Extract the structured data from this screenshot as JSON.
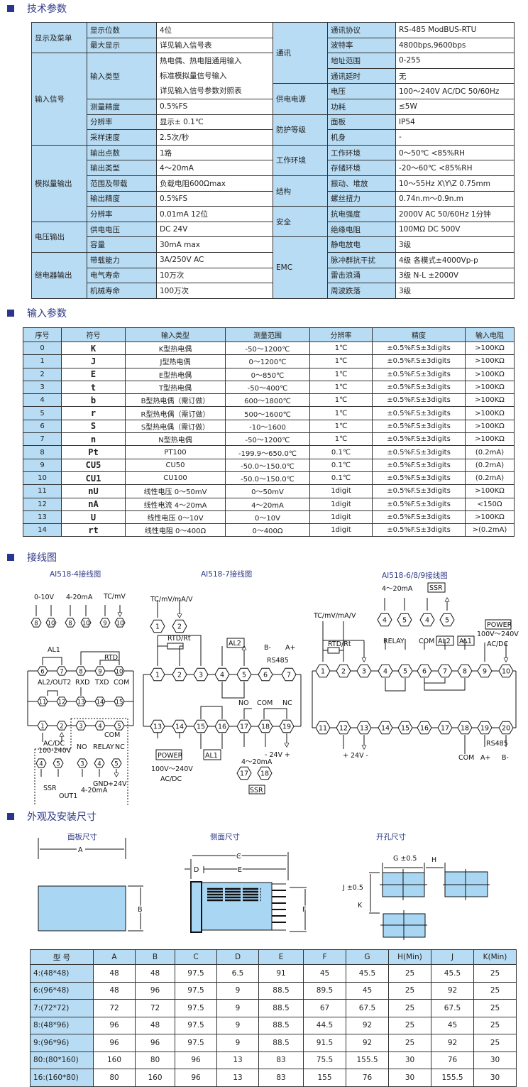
{
  "sections": {
    "tech": "技术参数",
    "input": "输入参数",
    "wiring": "接线图",
    "dims": "外观及安装尺寸"
  },
  "spec": {
    "left": [
      {
        "category": "显示及菜单",
        "items": [
          {
            "name": "显示位数",
            "value": "4位"
          },
          {
            "name": "最大显示",
            "value": "详见输入信号表"
          }
        ]
      },
      {
        "category": "输入信号",
        "items": [
          {
            "name": "输入类型",
            "value": [
              "热电偶、热电阻通用输入",
              "标准模拟量信号输入",
              "详见输入信号参数对照表"
            ]
          },
          {
            "name": "测量精度",
            "value": "0.5%FS"
          },
          {
            "name": "分辨率",
            "value": "显示± 0.1℃"
          },
          {
            "name": "采样速度",
            "value": "2.5次/秒"
          }
        ]
      },
      {
        "category": "模拟量输出",
        "items": [
          {
            "name": "输出点数",
            "value": "1路"
          },
          {
            "name": "输出类型",
            "value": "4～20mA"
          },
          {
            "name": "范围及带载",
            "value": "负载电阻600Ωmax"
          },
          {
            "name": "输出精度",
            "value": "0.5%FS"
          },
          {
            "name": "分辨率",
            "value": "0.01mA  12位"
          }
        ]
      },
      {
        "category": "电压输出",
        "items": [
          {
            "name": "供电电压",
            "value": "DC 24V"
          },
          {
            "name": "容量",
            "value": "30mA max"
          }
        ]
      },
      {
        "category": "继电器输出",
        "items": [
          {
            "name": "带载能力",
            "value": "3A/250V AC"
          },
          {
            "name": "电气寿命",
            "value": "10万次"
          },
          {
            "name": "机械寿命",
            "value": "100万次"
          }
        ]
      }
    ],
    "right": [
      {
        "category": "通讯",
        "items": [
          {
            "name": "通讯协议",
            "value": "RS-485 ModBUS-RTU"
          },
          {
            "name": "波特率",
            "value": "4800bps,9600bps"
          },
          {
            "name": "地址范围",
            "value": "0-255"
          },
          {
            "name": "通讯延时",
            "value": "无"
          }
        ]
      },
      {
        "category": "供电电源",
        "items": [
          {
            "name": "电压",
            "value": "100～240V AC/DC  50/60Hz"
          },
          {
            "name": "功耗",
            "value": "≤5W"
          }
        ]
      },
      {
        "category": "防护等级",
        "items": [
          {
            "name": "面板",
            "value": "IP54"
          },
          {
            "name": "机身",
            "value": "-"
          }
        ]
      },
      {
        "category": "工作环境",
        "items": [
          {
            "name": "工作环境",
            "value": "0～50℃  <85%RH"
          },
          {
            "name": "存储环境",
            "value": "-20～60℃  <85%RH"
          }
        ]
      },
      {
        "category": "结构",
        "items": [
          {
            "name": "振动、堆放",
            "value": "10～55Hz  X\\Y\\Z  0.75mm"
          },
          {
            "name": "螺丝扭力",
            "value": "0.74n.m～0.9n.m"
          }
        ]
      },
      {
        "category": "安全",
        "items": [
          {
            "name": "抗电强度",
            "value": "2000V AC  50/60Hz  1分钟"
          },
          {
            "name": "绝缘电阻",
            "value": "100MΩ  DC 500V"
          }
        ]
      },
      {
        "category": "EMC",
        "items": [
          {
            "name": "静电放电",
            "value": "3级"
          },
          {
            "name": "脉冲群抗干扰",
            "value": "4级 各模式±4000Vp-p"
          },
          {
            "name": "雷击浪涌",
            "value": "3级 N-L ±2000V"
          },
          {
            "name": "周波跌落",
            "value": "3级"
          }
        ]
      }
    ]
  },
  "input_table": {
    "headers": [
      "序号",
      "符号",
      "输入类型",
      "测量范围",
      "分辨率",
      "精度",
      "输入电阻"
    ],
    "rows": [
      [
        "0",
        "K",
        "K型热电偶",
        "-50～1200℃",
        "1℃",
        "±0.5%F.S±3digits",
        ">100KΩ"
      ],
      [
        "1",
        "J",
        "J型热电偶",
        "0～1200℃",
        "1℃",
        "±0.5%F.S±3digits",
        ">100KΩ"
      ],
      [
        "2",
        "E",
        "E型热电偶",
        "0～850℃",
        "1℃",
        "±0.5%F.S±3digits",
        ">100KΩ"
      ],
      [
        "3",
        "t",
        "T型热电偶",
        "-50～400℃",
        "1℃",
        "±0.5%F.S±3digits",
        ">100KΩ"
      ],
      [
        "4",
        "b",
        "B型热电偶（需订做）",
        "600～1800℃",
        "1℃",
        "±0.5%F.S±3digits",
        ">100KΩ"
      ],
      [
        "5",
        "r",
        "R型热电偶（需订做）",
        "500～1600℃",
        "1℃",
        "±0.5%F.S±3digits",
        ">100KΩ"
      ],
      [
        "6",
        "S",
        "S型热电偶（需订做）",
        "-10～1600",
        "1℃",
        "±0.5%F.S±3digits",
        ">100KΩ"
      ],
      [
        "7",
        "n",
        "N型热电偶",
        "-50～1200℃",
        "1℃",
        "±0.5%F.S±3digits",
        ">100KΩ"
      ],
      [
        "8",
        "Pt",
        "PT100",
        "-199.9～650.0℃",
        "0.1℃",
        "±0.5%F.S±3digits",
        "(0.2mA)"
      ],
      [
        "9",
        "CU5",
        "CU50",
        "-50.0～150.0℃",
        "0.1℃",
        "±0.5%F.S±3digits",
        "(0.2mA)"
      ],
      [
        "10",
        "CU1",
        "CU100",
        "-50.0～150.0℃",
        "0.1℃",
        "±0.5%F.S±3digits",
        "(0.2mA)"
      ],
      [
        "11",
        "nU",
        "线性电压 0～50mV",
        "0～50mV",
        "1digit",
        "±0.5%F.S±3digits",
        ">100KΩ"
      ],
      [
        "12",
        "nA",
        "线性电流 4～20mA",
        "4～20mA",
        "1digit",
        "±0.5%F.S±3digits",
        "<150Ω"
      ],
      [
        "13",
        "U",
        "线性电压 0～10V",
        "0～10V",
        "1digit",
        "±0.5%F.S±3digits",
        ">100KΩ"
      ],
      [
        "14",
        "rt",
        "线性电阻 0～400Ω",
        "0～400Ω",
        "1digit",
        "±0.5%F.S±3digits",
        ">(0.2mA)"
      ]
    ]
  },
  "wiring": {
    "d1": {
      "title": "AI518-4接线图",
      "labels": [
        "0-10V",
        "4-20mA",
        "TC/mV",
        "AL1",
        "RTD",
        "AL2/OUT2",
        "RXD",
        "TXD",
        "COM",
        "AC/DC",
        "100-240V",
        "NO",
        "RELAY",
        "NC",
        "COM",
        "SSR",
        "OUT1",
        "GND",
        "+24V",
        "4-20mA"
      ],
      "terminals": [
        "8",
        "10",
        "8",
        "10",
        "9",
        "10",
        "6",
        "7",
        "8",
        "9",
        "10",
        "11",
        "12",
        "13",
        "14",
        "15",
        "1",
        "2",
        "3",
        "4",
        "5",
        "4",
        "5",
        "3",
        "4",
        "5"
      ]
    },
    "d2": {
      "title": "AI518-7接线图",
      "labels": [
        "TC/mV/mA/V",
        "RTD/Rt",
        "AL2",
        "B-",
        "A+",
        "RS485",
        "NO",
        "COM",
        "NC",
        "POWER",
        "100V～240V",
        "AC/DC",
        "AL1",
        "- 24V +",
        "4～20mA",
        "SSR"
      ],
      "terminals": [
        "1",
        "2",
        "1",
        "2",
        "3",
        "4",
        "5",
        "6",
        "7",
        "13",
        "14",
        "15",
        "16",
        "17",
        "18",
        "19",
        "17",
        "18"
      ]
    },
    "d3": {
      "title": "AI518-6/8/9接线图",
      "labels": [
        "4～20mA",
        "SSR",
        "TC/mV/mA/V",
        "RTD/Rt",
        "RELAY",
        "COM",
        "AL2",
        "AL1",
        "POWER",
        "100V～240V",
        "AC/DC",
        "+ 24V -",
        "COM",
        "A+",
        "B-",
        "RS485"
      ],
      "terminals": [
        "4",
        "5",
        "4",
        "5",
        "1",
        "2",
        "3",
        "4",
        "5",
        "6",
        "7",
        "8",
        "9",
        "10",
        "11",
        "12",
        "13",
        "14",
        "15",
        "16",
        "17",
        "18",
        "19",
        "20"
      ]
    }
  },
  "dims": {
    "panel_title": "面板尺寸",
    "side_title": "侧面尺寸",
    "cutout_title": "开孔尺寸",
    "labels": {
      "A": "A",
      "B": "B",
      "C": "C",
      "D": "D",
      "E": "E",
      "F": "F",
      "G": "G ±0.5",
      "H": "H",
      "J": "J ±0.5",
      "K": "K"
    },
    "headers": [
      "型  号",
      "A",
      "B",
      "C",
      "D",
      "E",
      "F",
      "G",
      "H(Min)",
      "J",
      "K(Min)"
    ],
    "rows": [
      [
        "4:(48*48)",
        "48",
        "48",
        "97.5",
        "6.5",
        "91",
        "45",
        "45.5",
        "25",
        "45.5",
        "25"
      ],
      [
        "6:(96*48)",
        "48",
        "96",
        "97.5",
        "9",
        "88.5",
        "89.5",
        "45",
        "25",
        "92",
        "25"
      ],
      [
        "7:(72*72)",
        "72",
        "72",
        "97.5",
        "9",
        "88.5",
        "67",
        "67.5",
        "25",
        "67.5",
        "25"
      ],
      [
        "8:(48*96)",
        "96",
        "48",
        "97.5",
        "9",
        "88.5",
        "44.5",
        "92",
        "25",
        "45",
        "25"
      ],
      [
        "9:(96*96)",
        "96",
        "96",
        "97.5",
        "9",
        "88.5",
        "91.5",
        "92",
        "25",
        "92",
        "25"
      ],
      [
        "80:(80*160)",
        "160",
        "80",
        "96",
        "13",
        "83",
        "75.5",
        "155.5",
        "30",
        "76",
        "30"
      ],
      [
        "16:(160*80)",
        "80",
        "160",
        "96",
        "13",
        "83",
        "155",
        "76",
        "30",
        "155.5",
        "30"
      ]
    ]
  },
  "colors": {
    "accent": "#2a3590",
    "cell_blue": "#b8dcf3"
  }
}
